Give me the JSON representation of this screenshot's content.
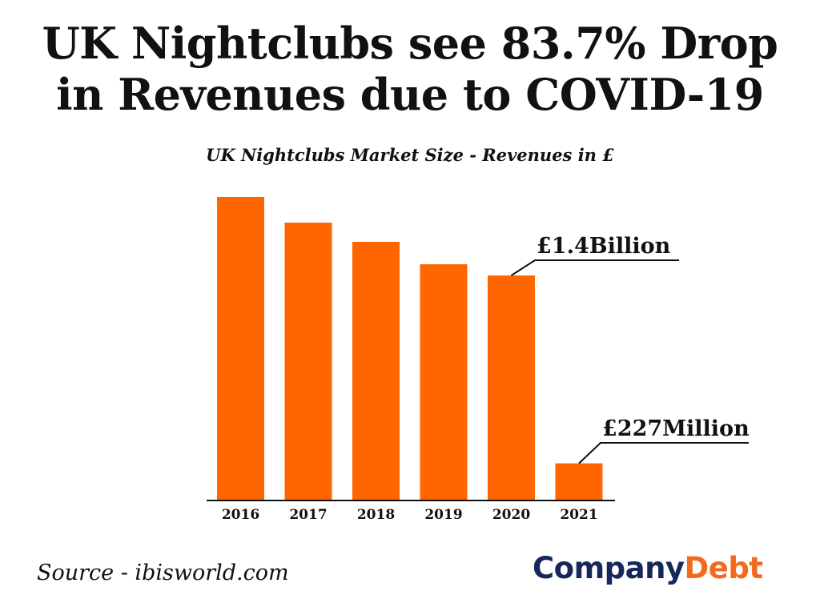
{
  "header": {
    "title_line1": "UK Nightclubs see 83.7% Drop",
    "title_line2": "in Revenues due to COVID-19"
  },
  "chart_data": {
    "type": "bar",
    "title": "UK Nightclubs Market Size - Revenues in £",
    "categories": [
      "2016",
      "2017",
      "2018",
      "2019",
      "2020",
      "2021"
    ],
    "values": [
      1.89,
      1.73,
      1.61,
      1.47,
      1.4,
      0.227
    ],
    "units": "£ billion (estimated from bar heights)",
    "annotations": [
      {
        "category": "2020",
        "text": "£1.4Billion"
      },
      {
        "category": "2021",
        "text": "£227Million"
      }
    ],
    "xlabel": "",
    "ylabel": "",
    "ylim": [
      0,
      1.9
    ],
    "grid": false,
    "y_axis_shown": false,
    "bar_color": "#ff6600"
  },
  "footer": {
    "source": "Source - ibisworld.com",
    "brand_part1": "Company",
    "brand_part2": "Debt",
    "brand_color_dark": "#16285a",
    "brand_color_accent": "#f26a1b"
  }
}
